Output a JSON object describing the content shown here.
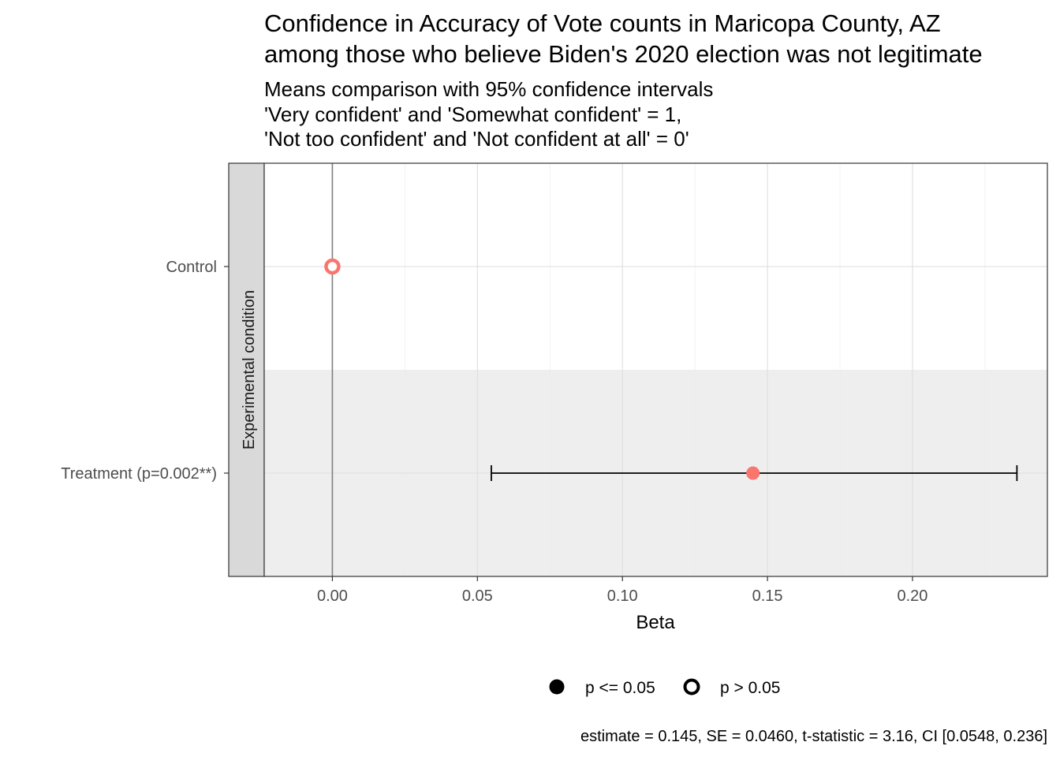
{
  "chart_data": {
    "type": "scatter",
    "title_lines": [
      "Confidence in Accuracy of Vote counts in Maricopa County, AZ",
      "among those who believe Biden's 2020 election was not legitimate"
    ],
    "subtitle_lines": [
      "Means comparison with 95% confidence intervals",
      "'Very confident' and 'Somewhat confident' = 1,",
      "'Not too confident' and 'Not confident at all' = 0'"
    ],
    "xlabel": "Beta",
    "ylabel": "",
    "facet_label": "Experimental condition",
    "categories": [
      "Control",
      "Treatment (p=0.002**)"
    ],
    "xlim": [
      -0.0235,
      0.2465
    ],
    "xticks": [
      0.0,
      0.05,
      0.1,
      0.15,
      0.2
    ],
    "xtick_labels": [
      "0.00",
      "0.05",
      "0.10",
      "0.15",
      "0.20"
    ],
    "grid": true,
    "points": [
      {
        "category": "Control",
        "estimate": 0.0,
        "ci": null,
        "significant": false
      },
      {
        "category": "Treatment (p=0.002**)",
        "estimate": 0.145,
        "ci": [
          0.0548,
          0.236
        ],
        "significant": true
      }
    ],
    "reference_line_x": 0,
    "point_color": "#F8766D",
    "legend": {
      "position": "bottom",
      "items": [
        {
          "label": "p <= 0.05",
          "shape": "filled-circle"
        },
        {
          "label": "p > 0.05",
          "shape": "open-circle"
        }
      ]
    },
    "caption": "estimate = 0.145, SE = 0.0460, t-statistic = 3.16, CI [0.0548, 0.236]"
  }
}
